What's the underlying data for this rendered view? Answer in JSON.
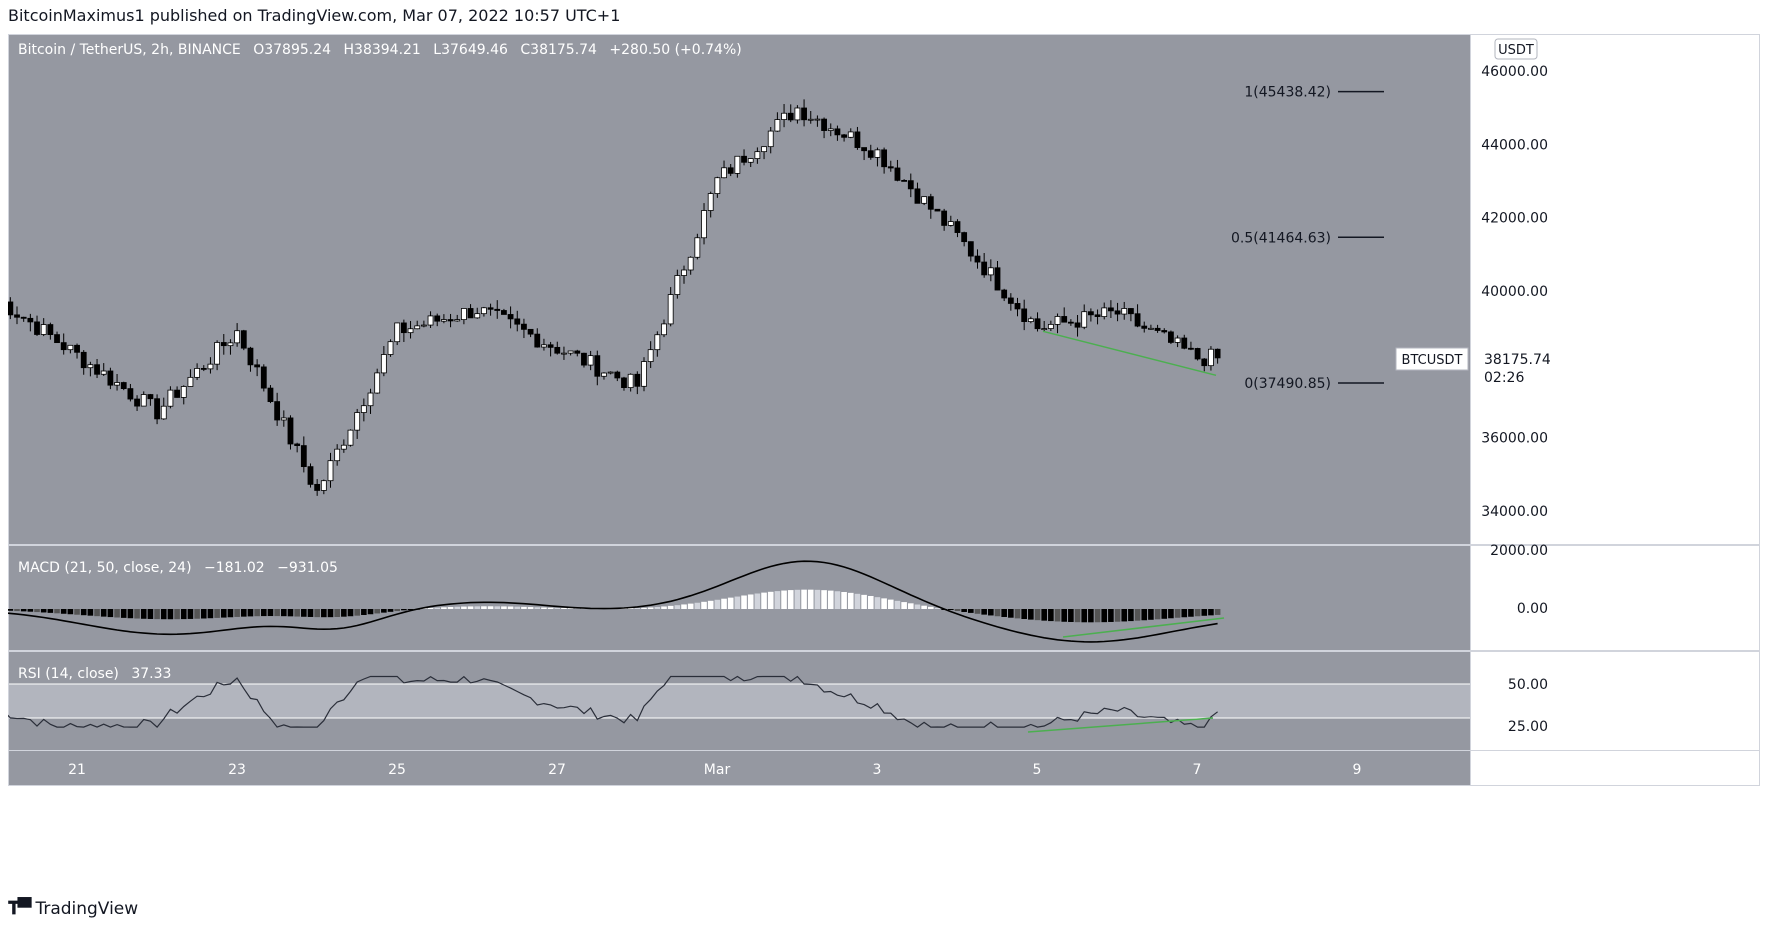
{
  "header": {
    "publisher_line": "BitcoinMaximus1 published on TradingView.com, Mar 07, 2022 10:57 UTC+1"
  },
  "legend": {
    "symbol": "Bitcoin / TetherUS, 2h, BINANCE",
    "o_label": "O",
    "o": "37895.24",
    "h_label": "H",
    "h": "38394.21",
    "l_label": "L",
    "l": "37649.46",
    "c_label": "C",
    "c": "38175.74",
    "change": "+280.50 (+0.74%)"
  },
  "currency_badge": "USDT",
  "price_tag": {
    "symbol": "BTCUSDT",
    "price": "38175.74",
    "countdown": "02:26"
  },
  "macd_legend": {
    "name": "MACD (21, 50, close, 24)",
    "v1": "−181.02",
    "v2": "−931.05"
  },
  "rsi_legend": {
    "name": "RSI (14, close)",
    "v": "37.33"
  },
  "footer": {
    "brand": "TradingView"
  },
  "colors": {
    "pane_bg": "#9598a1",
    "rsi_band": "#b2b5be",
    "divergence": "#4caf50",
    "candle_up": "#ffffff",
    "candle_down": "#000000",
    "axis_bg": "#ffffff"
  },
  "chart_data": [
    {
      "type": "candlestick",
      "title": "",
      "y_ticks": [
        34000,
        36000,
        38000,
        40000,
        42000,
        44000,
        46000
      ],
      "y_tick_labels": [
        "34000.00",
        "36000.00",
        "38000.00",
        "40000.00",
        "42000.00",
        "44000.00",
        "46000.00"
      ],
      "ylim": [
        33000,
        47000
      ],
      "x_tick_labels": [
        "21",
        "23",
        "25",
        "27",
        "Mar",
        "3",
        "5",
        "7",
        "9"
      ],
      "fib_levels": [
        {
          "label": "1(45438.42)",
          "value": 45438.42
        },
        {
          "label": "0.5(41464.63)",
          "value": 41464.63
        },
        {
          "label": "0(37490.85)",
          "value": 37490.85
        }
      ],
      "key_points": [
        {
          "x": "Feb 20",
          "y": 39800
        },
        {
          "x": "Feb 22",
          "y": 36700
        },
        {
          "x": "Feb 23",
          "y": 38900
        },
        {
          "x": "Feb 24",
          "y": 34500
        },
        {
          "x": "Feb 25",
          "y": 38900
        },
        {
          "x": "Feb 26",
          "y": 39500
        },
        {
          "x": "Feb 28",
          "y": 37400
        },
        {
          "x": "Mar 1",
          "y": 43000
        },
        {
          "x": "Mar 2",
          "y": 45000
        },
        {
          "x": "Mar 3",
          "y": 43800
        },
        {
          "x": "Mar 4",
          "y": 41500
        },
        {
          "x": "Mar 5",
          "y": 39000
        },
        {
          "x": "Mar 6",
          "y": 39400
        },
        {
          "x": "Mar 7",
          "y": 38175.74
        }
      ],
      "last_price": 38175.74
    },
    {
      "type": "bar+line",
      "indicator": "MACD (21, 50, close, 24)",
      "y_tick_labels": [
        "2000.00",
        "0.00"
      ],
      "ylim": [
        -1100,
        1900
      ],
      "last_values": [
        -181.02,
        -931.05
      ]
    },
    {
      "type": "line",
      "indicator": "RSI (14, close)",
      "y_tick_labels": [
        "50.00",
        "25.00"
      ],
      "band": [
        30,
        70
      ],
      "last_value": 37.33
    }
  ]
}
